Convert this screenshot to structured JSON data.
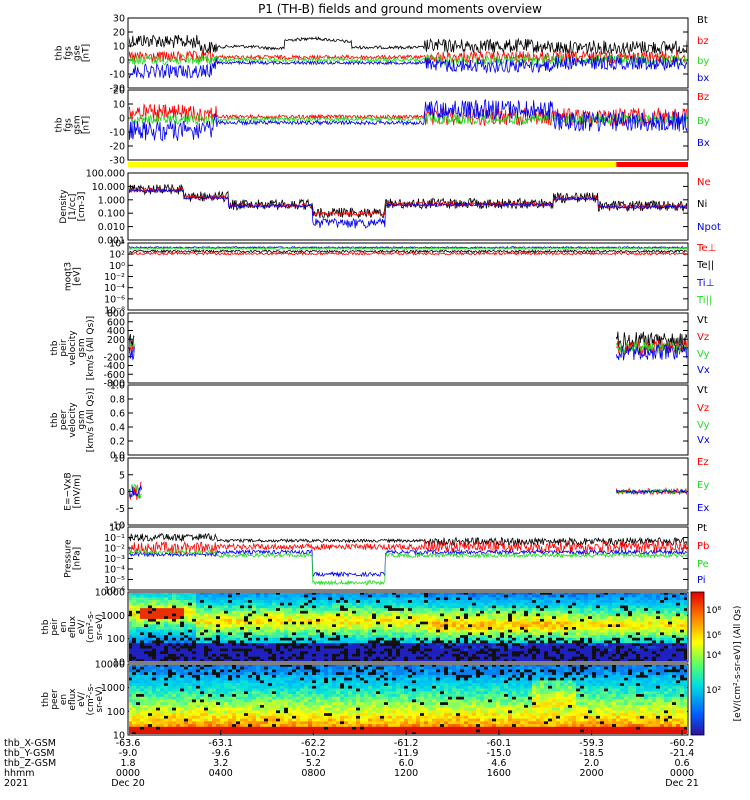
{
  "title": "P1 (TH-B) fields and ground moments overview",
  "colors": {
    "black": "#000000",
    "red": "#ff0000",
    "green": "#22dd22",
    "blue": "#0000ee",
    "yellow": "#ffff00"
  },
  "status_bar": {
    "segments": [
      {
        "start": 0,
        "end": 0.872,
        "color": "#ffff00"
      },
      {
        "start": 0.872,
        "end": 1,
        "color": "#ff0000"
      }
    ]
  },
  "chart_data": [
    {
      "type": "line",
      "id": "p1",
      "ylabel": [
        "thb",
        "fgs",
        "gse",
        "[nT]"
      ],
      "ylim": [
        -20,
        30
      ],
      "yticks": [
        30,
        20,
        10,
        0,
        -10,
        -20
      ],
      "series": [
        {
          "name": "Bt",
          "color": "#000000"
        },
        {
          "name": "bz",
          "color": "#ff0000"
        },
        {
          "name": "by",
          "color": "#22dd22"
        },
        {
          "name": "bx",
          "color": "#0000ee"
        }
      ]
    },
    {
      "type": "line",
      "id": "p2",
      "ylabel": [
        "thb",
        "fgs",
        "gsm",
        "[nT]"
      ],
      "ylim": [
        -35,
        25
      ],
      "yticks": [
        20,
        10,
        0,
        -10,
        -20,
        -30
      ],
      "series": [
        {
          "name": "Bz",
          "color": "#ff0000"
        },
        {
          "name": "By",
          "color": "#22dd22"
        },
        {
          "name": "Bx",
          "color": "#0000ee"
        }
      ]
    },
    {
      "type": "line",
      "id": "p3",
      "log": true,
      "ylabel": [
        "Density",
        "[1/cc]",
        "[cm-3]"
      ],
      "yticks": [
        "100.000",
        "10.000",
        "1.000",
        "0.100",
        "0.010",
        "0.001"
      ],
      "series": [
        {
          "name": "Ne",
          "color": "#ff0000"
        },
        {
          "name": "Ni",
          "color": "#000000"
        },
        {
          "name": "Npot",
          "color": "#0000ee"
        }
      ]
    },
    {
      "type": "line",
      "id": "p4",
      "log": true,
      "ylabel": [
        "moqt3",
        "[eV]"
      ],
      "yticks": [
        "10⁴",
        "10²",
        "10⁰",
        "10⁻²",
        "10⁻⁴",
        "10⁻⁶",
        "10⁻⁸"
      ],
      "series": [
        {
          "name": "Te⊥",
          "color": "#ff0000"
        },
        {
          "name": "Te||",
          "color": "#000000"
        },
        {
          "name": "Ti⊥",
          "color": "#0000ee"
        },
        {
          "name": "Ti||",
          "color": "#22dd22"
        }
      ]
    },
    {
      "type": "line",
      "id": "p5",
      "ylabel": [
        "thb",
        "peir",
        "velocity",
        "gsm",
        "[km/s (All Qs)]"
      ],
      "ylim": [
        -800,
        800
      ],
      "yticks": [
        800,
        600,
        400,
        200,
        0,
        -200,
        -400,
        -600,
        -800
      ],
      "series": [
        {
          "name": "Vt",
          "color": "#000000"
        },
        {
          "name": "Vz",
          "color": "#ff0000"
        },
        {
          "name": "Vy",
          "color": "#22dd22"
        },
        {
          "name": "Vx",
          "color": "#0000ee"
        }
      ]
    },
    {
      "type": "line",
      "id": "p6",
      "ylabel": [
        "thb",
        "peer",
        "velocity",
        "gsm",
        "[km/s (All Qs)]"
      ],
      "ylim": [
        0,
        1
      ],
      "yticks": [
        "1.0",
        "0.8",
        "0.6",
        "0.4",
        "0.2",
        "0.0"
      ],
      "series": [
        {
          "name": "Vt",
          "color": "#000000"
        },
        {
          "name": "Vz",
          "color": "#ff0000"
        },
        {
          "name": "Vy",
          "color": "#22dd22"
        },
        {
          "name": "Vx",
          "color": "#0000ee"
        }
      ]
    },
    {
      "type": "line",
      "id": "p7",
      "ylabel": [
        "E=−VxB",
        "[mV/m]"
      ],
      "ylim": [
        -10,
        10
      ],
      "yticks": [
        10,
        5,
        0,
        -5,
        -10
      ],
      "series": [
        {
          "name": "Ez",
          "color": "#ff0000"
        },
        {
          "name": "Ey",
          "color": "#22dd22"
        },
        {
          "name": "Ex",
          "color": "#0000ee"
        }
      ]
    },
    {
      "type": "line",
      "id": "p8",
      "log": true,
      "ylabel": [
        "Pressure",
        "[nPa]"
      ],
      "yticks": [
        "10⁰",
        "10⁻¹",
        "10⁻²",
        "10⁻³",
        "10⁻⁴",
        "10⁻⁵",
        "10⁻⁶"
      ],
      "series": [
        {
          "name": "Pt",
          "color": "#000000"
        },
        {
          "name": "Pb",
          "color": "#ff0000"
        },
        {
          "name": "Pe",
          "color": "#22dd22"
        },
        {
          "name": "Pi",
          "color": "#0000ee"
        }
      ]
    },
    {
      "type": "heatmap",
      "id": "p9",
      "ylabel": [
        "thb",
        "peir",
        "en",
        "eflux",
        "eV/",
        "(cm²-s-",
        "sr-eV)"
      ],
      "yticks": [
        "10000",
        "1000",
        "100",
        "10"
      ]
    },
    {
      "type": "heatmap",
      "id": "p10",
      "ylabel": [
        "thb",
        "peer",
        "en",
        "eflux",
        "eV/",
        "(cm²-s-",
        "sr-eV)"
      ],
      "yticks": [
        "10000",
        "1000",
        "100",
        "10"
      ]
    }
  ],
  "colorbar": {
    "label": "[eV/(cm²-s-sr-eV)] (All Qs)",
    "ticks": [
      "10⁸",
      "10⁶",
      "10⁴",
      "10²"
    ]
  },
  "x_axis": {
    "rows": [
      {
        "label": "thb_X-GSM",
        "values": [
          "-63.6",
          "-63.1",
          "-62.2",
          "-61.2",
          "-60.1",
          "-59.3",
          "-60.2"
        ]
      },
      {
        "label": "thb_Y-GSM",
        "values": [
          "-9.0",
          "-9.6",
          "-10.2",
          "-11.9",
          "-15.0",
          "-18.5",
          "-21.4"
        ]
      },
      {
        "label": "thb_Z-GSM",
        "values": [
          "1.8",
          "3.2",
          "5.2",
          "6.0",
          "4.6",
          "2.0",
          "0.6"
        ]
      },
      {
        "label": "hhmm",
        "values": [
          "0000",
          "0400",
          "0800",
          "1200",
          "1600",
          "2000",
          "0000"
        ]
      },
      {
        "label": "2021",
        "values": [
          "Dec 20",
          "",
          "",
          "",
          "",
          "",
          "Dec 21"
        ]
      }
    ]
  }
}
